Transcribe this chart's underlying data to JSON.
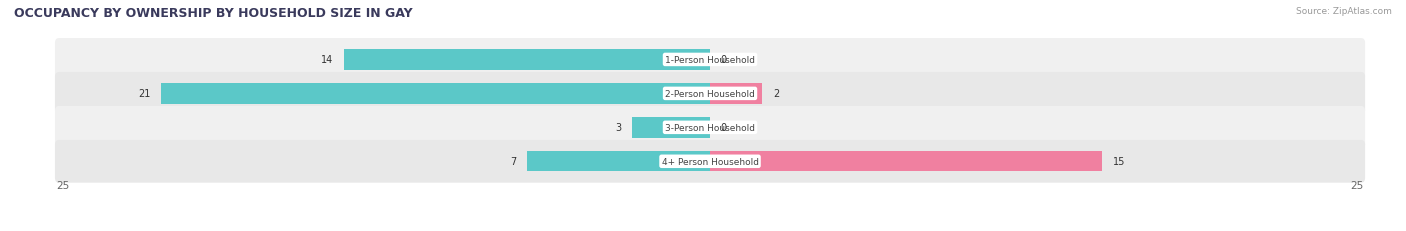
{
  "title": "OCCUPANCY BY OWNERSHIP BY HOUSEHOLD SIZE IN GAY",
  "source": "Source: ZipAtlas.com",
  "categories": [
    "1-Person Household",
    "2-Person Household",
    "3-Person Household",
    "4+ Person Household"
  ],
  "owner_values": [
    14,
    21,
    3,
    7
  ],
  "renter_values": [
    0,
    2,
    0,
    15
  ],
  "owner_color": "#5bc8c8",
  "renter_color": "#f080a0",
  "axis_max": 25,
  "title_fontsize": 9,
  "bar_height": 0.6,
  "row_colors": [
    "#f0f0f0",
    "#e8e8e8",
    "#f0f0f0",
    "#e8e8e8"
  ]
}
